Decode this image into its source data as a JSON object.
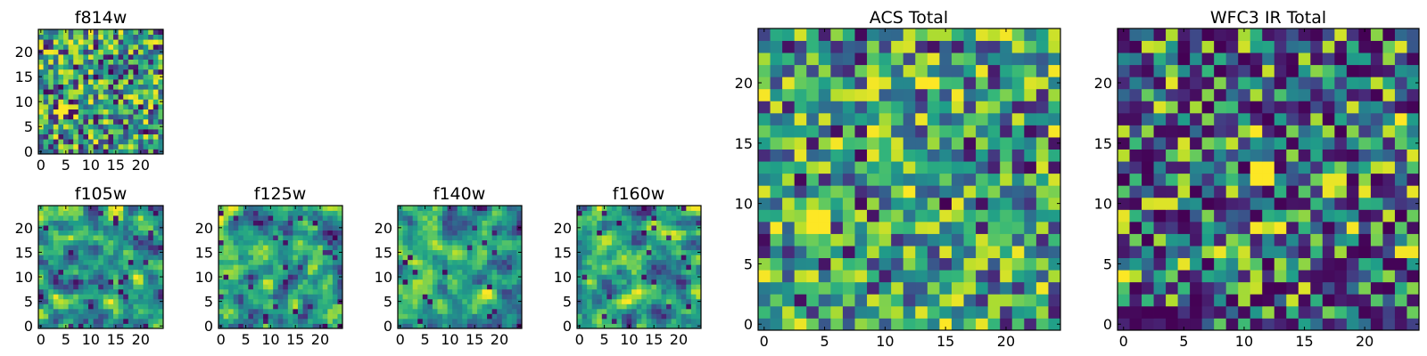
{
  "chart_data": [
    {
      "type": "heatmap",
      "title": "f814w",
      "colormap": "viridis",
      "xlim": [
        0,
        24
      ],
      "ylim": [
        0,
        24
      ],
      "xticks": [
        0,
        5,
        10,
        15,
        20
      ],
      "yticks": [
        0,
        5,
        10,
        15,
        20
      ],
      "grid_size": [
        25,
        25
      ],
      "value_range": [
        0,
        1
      ],
      "seed": 11,
      "smoothing": 0,
      "bias": 0.62,
      "hotspots": [
        {
          "x": 4,
          "y": 8,
          "r": 1.2,
          "v": 1.0
        }
      ],
      "notes": "per-pixel values not readable; filled procedurally with viridis-like noise"
    },
    {
      "type": "heatmap",
      "title": "f105w",
      "colormap": "viridis",
      "xlim": [
        0,
        24
      ],
      "ylim": [
        0,
        24
      ],
      "xticks": [
        0,
        5,
        10,
        15,
        20
      ],
      "yticks": [
        0,
        5,
        10,
        15,
        20
      ],
      "grid_size": [
        25,
        25
      ],
      "value_range": [
        0,
        1
      ],
      "seed": 23,
      "smoothing": 1,
      "bias": 0.62,
      "hotspots": []
    },
    {
      "type": "heatmap",
      "title": "f125w",
      "colormap": "viridis",
      "xlim": [
        0,
        24
      ],
      "ylim": [
        0,
        24
      ],
      "xticks": [
        0,
        5,
        10,
        15,
        20
      ],
      "yticks": [
        0,
        5,
        10,
        15,
        20
      ],
      "grid_size": [
        25,
        25
      ],
      "value_range": [
        0,
        1
      ],
      "seed": 37,
      "smoothing": 1,
      "bias": 0.62,
      "hotspots": []
    },
    {
      "type": "heatmap",
      "title": "f140w",
      "colormap": "viridis",
      "xlim": [
        0,
        24
      ],
      "ylim": [
        0,
        24
      ],
      "xticks": [
        0,
        5,
        10,
        15,
        20
      ],
      "yticks": [
        0,
        5,
        10,
        15,
        20
      ],
      "grid_size": [
        25,
        25
      ],
      "value_range": [
        0,
        1
      ],
      "seed": 53,
      "smoothing": 1,
      "bias": 0.62,
      "hotspots": []
    },
    {
      "type": "heatmap",
      "title": "f160w",
      "colormap": "viridis",
      "xlim": [
        0,
        24
      ],
      "ylim": [
        0,
        24
      ],
      "xticks": [
        0,
        5,
        10,
        15,
        20
      ],
      "yticks": [
        0,
        5,
        10,
        15,
        20
      ],
      "grid_size": [
        25,
        25
      ],
      "value_range": [
        0,
        1
      ],
      "seed": 71,
      "smoothing": 1,
      "bias": 0.62,
      "hotspots": []
    },
    {
      "type": "heatmap",
      "title": "ACS Total",
      "colormap": "viridis",
      "xlim": [
        0,
        24
      ],
      "ylim": [
        0,
        24
      ],
      "xticks": [
        0,
        5,
        10,
        15,
        20
      ],
      "yticks": [
        0,
        5,
        10,
        15,
        20
      ],
      "grid_size": [
        25,
        25
      ],
      "value_range": [
        0,
        1
      ],
      "seed": 89,
      "smoothing": 0,
      "bias": 0.68,
      "hotspots": [
        {
          "x": 4.5,
          "y": 8.5,
          "r": 1.4,
          "v": 1.0
        }
      ],
      "notes": "bright patch near (4-5, 8-9); several dark pixels scattered"
    },
    {
      "type": "heatmap",
      "title": "WFC3 IR Total",
      "colormap": "viridis",
      "xlim": [
        0,
        24
      ],
      "ylim": [
        0,
        24
      ],
      "xticks": [
        0,
        5,
        10,
        15,
        20
      ],
      "yticks": [
        0,
        5,
        10,
        15,
        20
      ],
      "grid_size": [
        25,
        25
      ],
      "value_range": [
        0,
        1
      ],
      "seed": 97,
      "smoothing": 0,
      "bias": 0.28,
      "hotspots": [
        {
          "x": 11.5,
          "y": 12.5,
          "r": 1.0,
          "v": 1.0
        },
        {
          "x": 17.5,
          "y": 12,
          "r": 0.8,
          "v": 0.97
        },
        {
          "x": 0,
          "y": 8,
          "r": 0.6,
          "v": 0.92
        }
      ],
      "notes": "mostly dark blue/teal background with bright yellow sources"
    }
  ]
}
